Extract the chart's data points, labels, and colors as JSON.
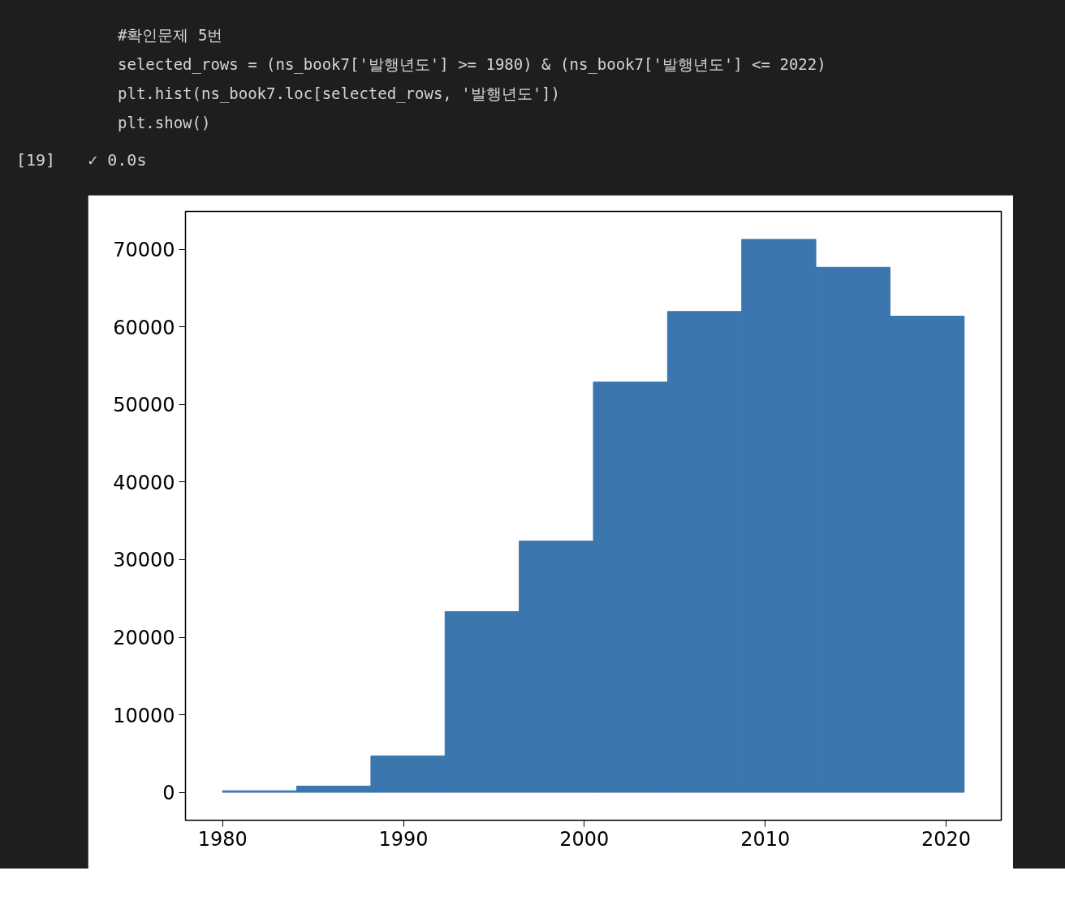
{
  "chart_data": {
    "type": "histogram",
    "annotations": [
      "#확인문제 5번",
      "selected_rows = (ns_book7['발행년도'] >= 1980) & (ns_book7['발행년도'] <= 2022)",
      "plt.hist(ns_book7.loc[selected_rows, '발행년도'])",
      "plt.show()",
      "[19]",
      "✓ 0.0s"
    ],
    "bins": [
      1980,
      1984.1,
      1988.2,
      1992.3,
      1996.4,
      2000.5,
      2004.6,
      2008.7,
      2012.8,
      2016.9,
      2021
    ],
    "values": [
      200,
      800,
      4700,
      23300,
      32400,
      52900,
      62000,
      71300,
      67700,
      61400
    ],
    "color": "#3b76af",
    "xlim": [
      1977.95,
      2023.05
    ],
    "ylim": [
      -3600,
      74900
    ],
    "xticks": [
      1980,
      1990,
      2000,
      2010,
      2020
    ],
    "yticks": [
      0,
      10000,
      20000,
      30000,
      40000,
      50000,
      60000,
      70000
    ],
    "grid": false
  }
}
